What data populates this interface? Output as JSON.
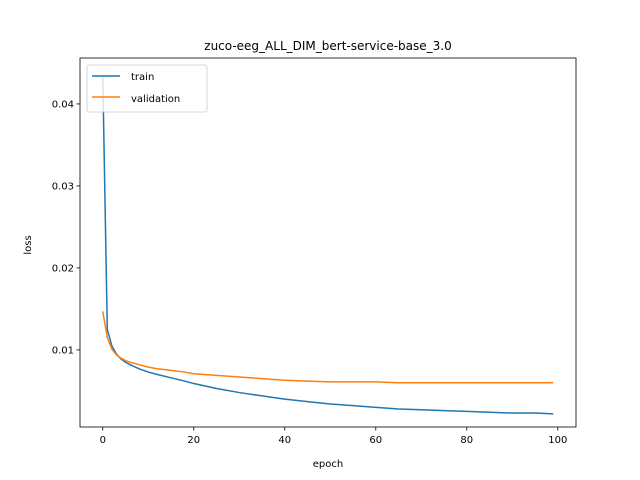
{
  "chart_data": {
    "type": "line",
    "title": "zuco-eeg_ALL_DIM_bert-service-base_3.0",
    "xlabel": "epoch",
    "ylabel": "loss",
    "xlim": [
      -5,
      104
    ],
    "ylim": [
      0.0006,
      0.0456
    ],
    "xticks": [
      0,
      20,
      40,
      60,
      80,
      100
    ],
    "yticks": [
      0.01,
      0.02,
      0.03,
      0.04
    ],
    "legend_position": "upper-left",
    "grid": false,
    "series": [
      {
        "name": "train",
        "color": "#1f77b4",
        "x": [
          0,
          1,
          2,
          3,
          4,
          5,
          6,
          8,
          10,
          12,
          15,
          18,
          20,
          25,
          30,
          35,
          40,
          45,
          50,
          55,
          60,
          65,
          70,
          75,
          80,
          85,
          90,
          95,
          99
        ],
        "y": [
          0.0435,
          0.0125,
          0.0105,
          0.0095,
          0.0089,
          0.0085,
          0.0082,
          0.0077,
          0.0073,
          0.007,
          0.0066,
          0.0062,
          0.0059,
          0.0053,
          0.0048,
          0.0044,
          0.004,
          0.0037,
          0.0034,
          0.0032,
          0.003,
          0.0028,
          0.0027,
          0.0026,
          0.0025,
          0.0024,
          0.0023,
          0.0023,
          0.0022
        ]
      },
      {
        "name": "validation",
        "color": "#ff7f0e",
        "x": [
          0,
          1,
          2,
          3,
          4,
          5,
          6,
          8,
          10,
          12,
          15,
          18,
          20,
          25,
          30,
          35,
          40,
          45,
          50,
          55,
          60,
          65,
          70,
          75,
          80,
          85,
          90,
          95,
          99
        ],
        "y": [
          0.0147,
          0.0115,
          0.0101,
          0.0094,
          0.009,
          0.0087,
          0.0085,
          0.0082,
          0.0079,
          0.0077,
          0.0075,
          0.0073,
          0.0071,
          0.0069,
          0.0067,
          0.0065,
          0.0063,
          0.0062,
          0.0061,
          0.0061,
          0.0061,
          0.006,
          0.006,
          0.006,
          0.006,
          0.006,
          0.006,
          0.006,
          0.006
        ]
      }
    ]
  }
}
